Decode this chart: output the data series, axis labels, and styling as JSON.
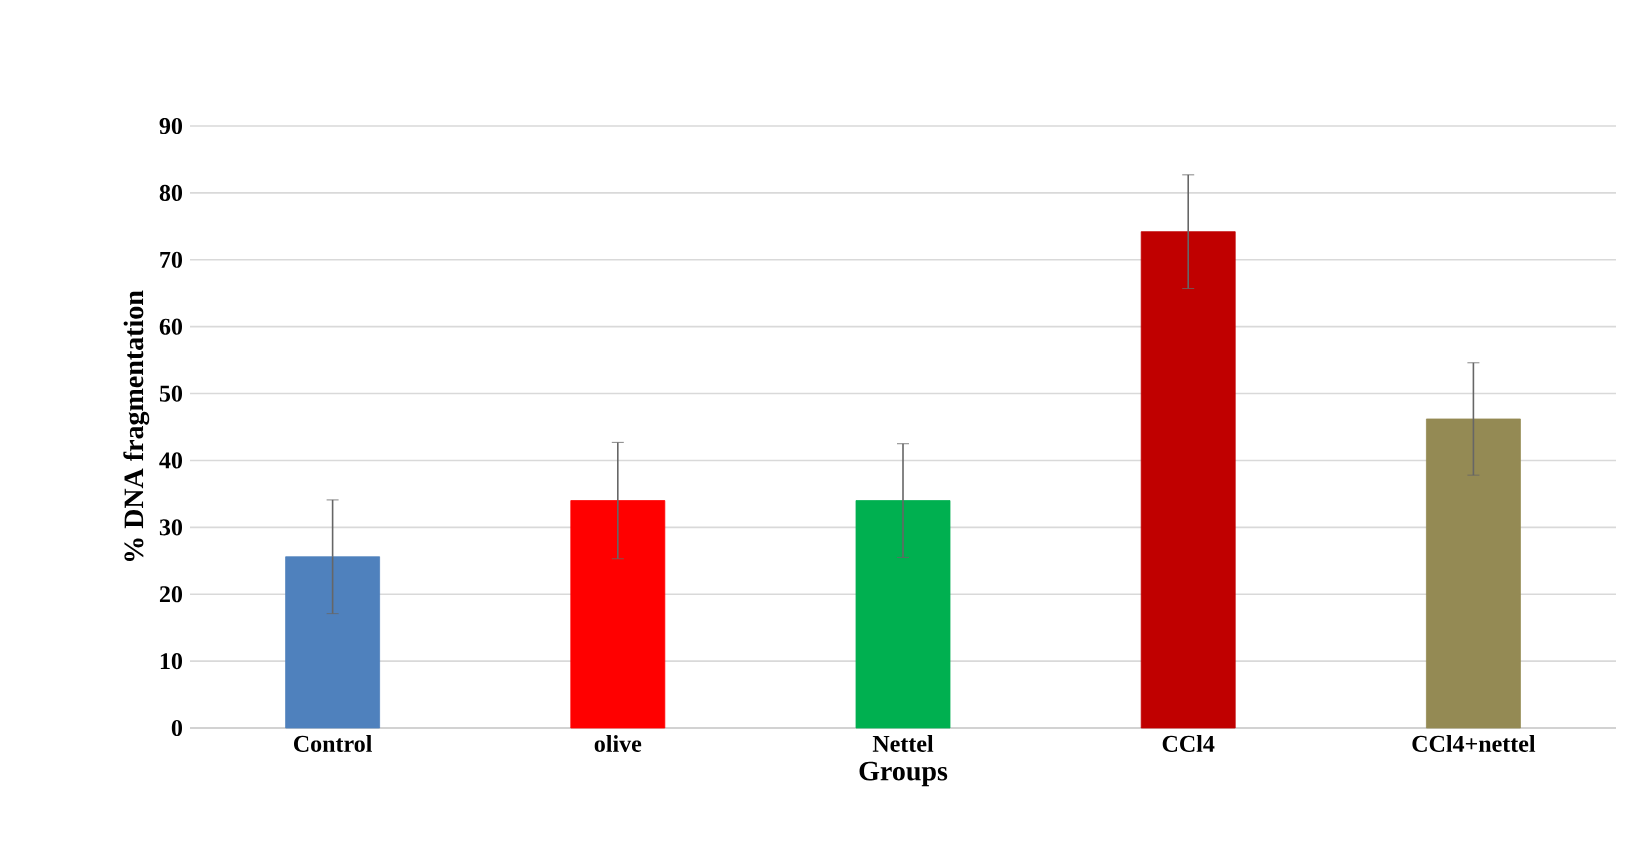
{
  "chart_data": {
    "type": "bar",
    "xlabel": "Groups",
    "ylabel": "% DNA fragmentation",
    "categories": [
      "Control",
      "olive",
      "Nettel",
      "CCl4",
      "CCl4+nettel"
    ],
    "values": [
      25.6,
      34,
      34,
      74.2,
      46.2
    ],
    "errors": [
      8.5,
      8.7,
      8.5,
      8.5,
      8.4
    ],
    "colors": [
      "#4f81bd",
      "#ff0000",
      "#00b050",
      "#c00000",
      "#948a54"
    ],
    "ylim": [
      0,
      90
    ],
    "yticks": [
      0,
      10,
      20,
      30,
      40,
      50,
      60,
      70,
      80,
      90
    ],
    "grid": "y"
  }
}
